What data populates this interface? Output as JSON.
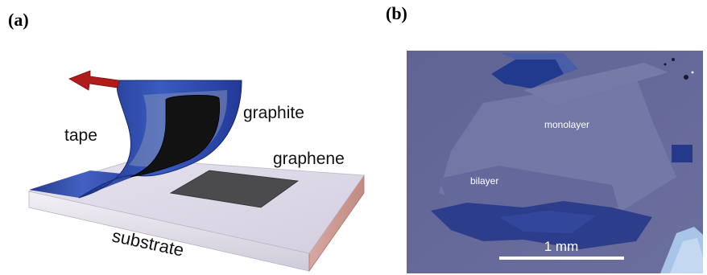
{
  "panels": [
    {
      "id": "a",
      "label": "(a)",
      "annotations": {
        "tape": "tape",
        "graphite": "graphite",
        "graphene": "graphene",
        "substrate": "substrate"
      }
    },
    {
      "id": "b",
      "label": "(b)",
      "annotations": {
        "monolayer": "monolayer",
        "bilayer": "bilayer",
        "scale_bar": "1 mm"
      }
    }
  ],
  "colors": {
    "tape": "#2e4aa3",
    "arrow": "#b01c1c",
    "graphite": "#121212",
    "graphene": "#4a4a4c",
    "substrate_top": "#dcd6e6",
    "micrograph_bg": "#6b6f9e",
    "flake_dark": "#2a3f8f"
  }
}
